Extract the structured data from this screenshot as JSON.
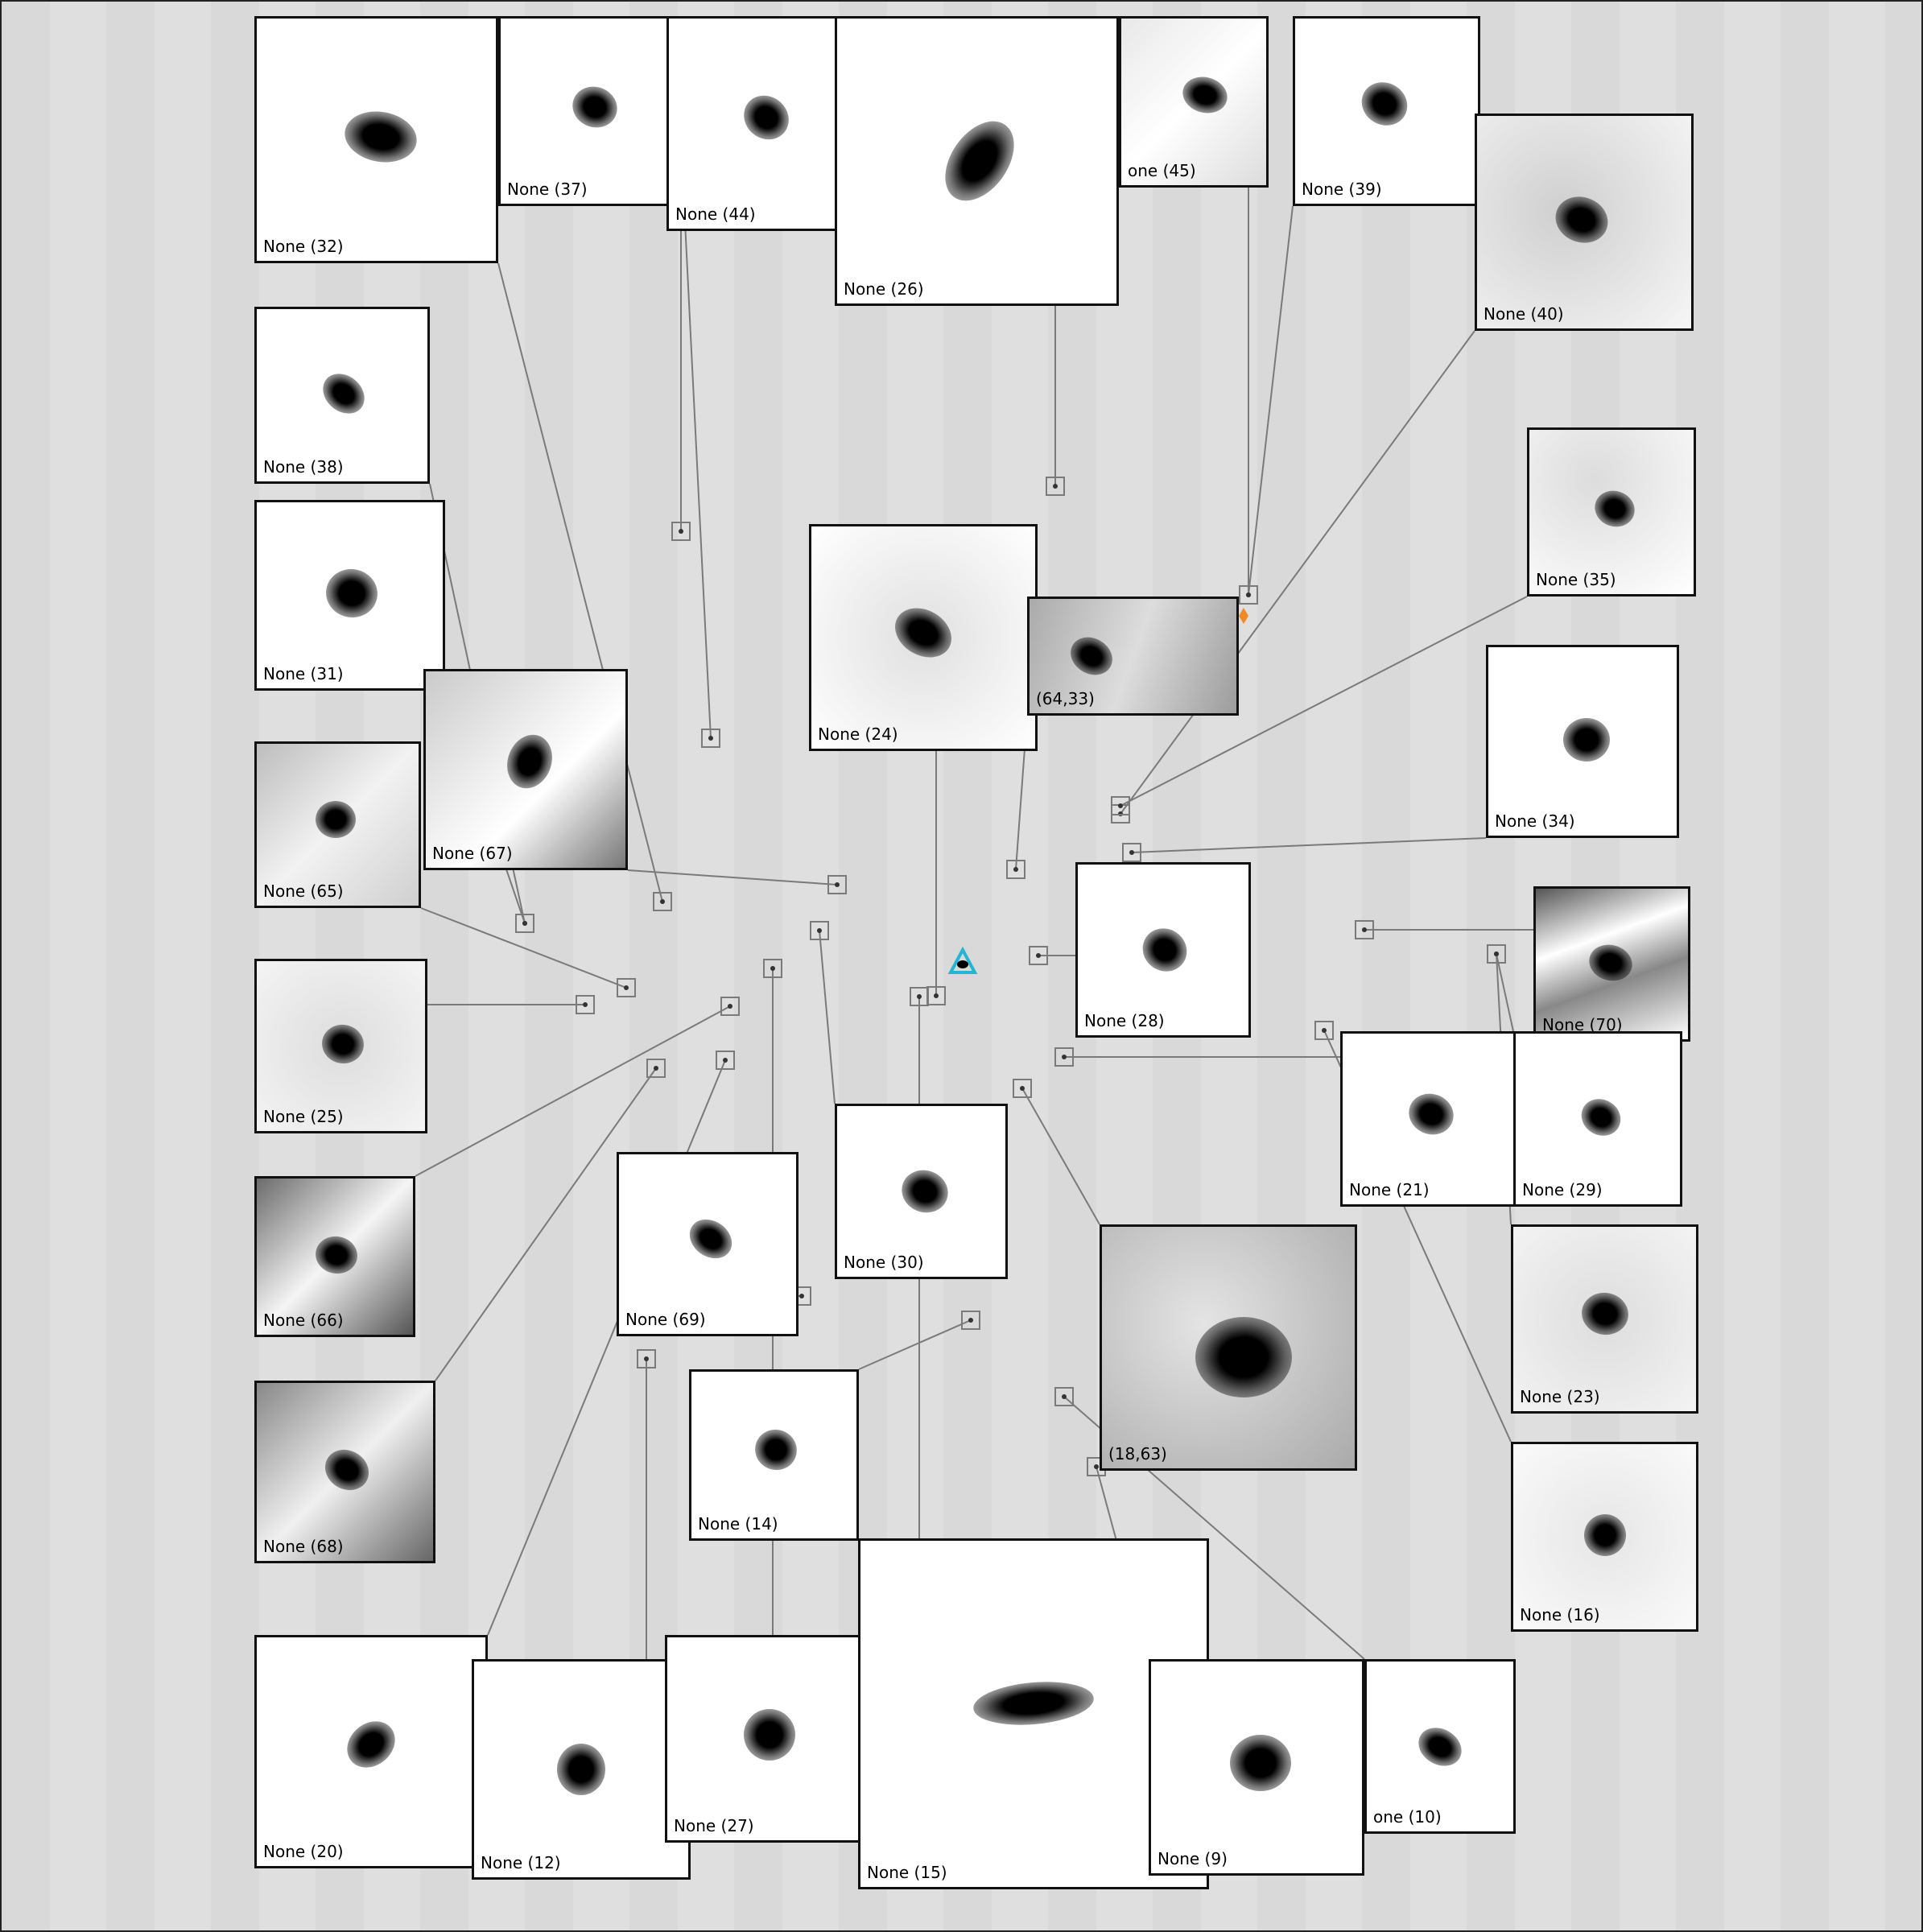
{
  "cutouts": [
    {
      "label": "None (32)"
    },
    {
      "label": "None (37)"
    },
    {
      "label": "None (44)"
    },
    {
      "label": "None (26)"
    },
    {
      "label": "one (45)"
    },
    {
      "label": "None (39)"
    },
    {
      "label": "None (40)"
    },
    {
      "label": "None (38)"
    },
    {
      "label": "None (31)"
    },
    {
      "label": "None (67)"
    },
    {
      "label": "None (65)"
    },
    {
      "label": "None (24)"
    },
    {
      "label": "(64,33)"
    },
    {
      "label": "None (35)"
    },
    {
      "label": "None (34)"
    },
    {
      "label": "None (28)"
    },
    {
      "label": "None (70)"
    },
    {
      "label": "None (25)"
    },
    {
      "label": "None (21)"
    },
    {
      "label": "None (29)"
    },
    {
      "label": "None (66)"
    },
    {
      "label": "None (69)"
    },
    {
      "label": "None (30)"
    },
    {
      "label": "(18,63)"
    },
    {
      "label": "None (23)"
    },
    {
      "label": "None (68)"
    },
    {
      "label": "None (14)"
    },
    {
      "label": "None (16)"
    },
    {
      "label": "None (20)"
    },
    {
      "label": "None (12)"
    },
    {
      "label": "None (27)"
    },
    {
      "label": "None (15)"
    },
    {
      "label": "None (9)"
    },
    {
      "label": "one (10)"
    }
  ],
  "colors": {
    "frame": "#111111",
    "leader_line": "#7a7a7a",
    "field_background": "#dedede",
    "target_marker": "#23b5d3",
    "secondary_marker": "#f08a24"
  }
}
